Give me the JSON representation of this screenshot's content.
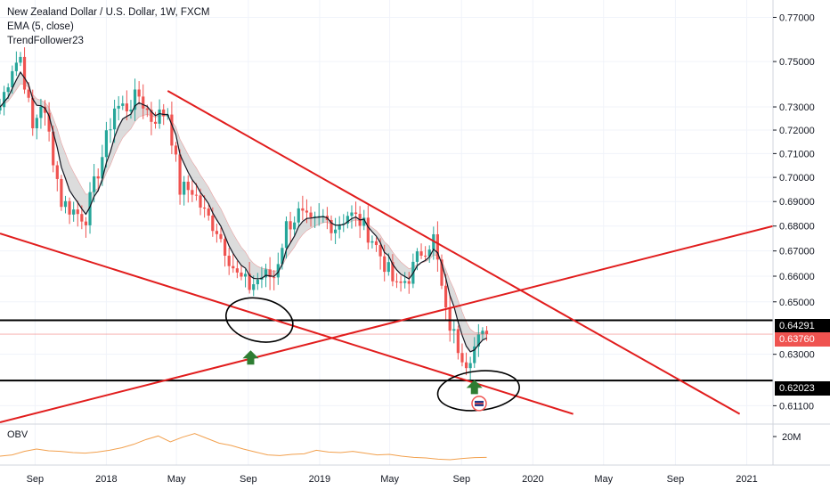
{
  "header": {
    "title": "New Zealand Dollar / U.S. Dollar, 1W, FXCM",
    "indicator": "EMA (5, close)",
    "author": "TrendFollower23"
  },
  "obv_pane": {
    "label": "OBV",
    "tick": "20M"
  },
  "price_tags": [
    {
      "value": "0.64291",
      "color": "#000000"
    },
    {
      "value": "0.63760",
      "color": "#ef5350"
    },
    {
      "value": "0.62023",
      "color": "#000000"
    }
  ],
  "colors": {
    "bull": "#26a69a",
    "bear": "#ef5350",
    "trendline": "#e11d1d",
    "support": "#000000",
    "ema": "#131722",
    "cloud": "#b2b2b2",
    "obv": "#f2a04d",
    "arrow": "#2e7d32"
  },
  "chart_data": {
    "type": "candlestick",
    "title": "New Zealand Dollar / U.S. Dollar, 1W, FXCM",
    "y_axis": {
      "scale": "log",
      "range": [
        0.605,
        0.778
      ],
      "ticks": [
        "0.77000",
        "0.75000",
        "0.73000",
        "0.72000",
        "0.71000",
        "0.70000",
        "0.69000",
        "0.68000",
        "0.67000",
        "0.66000",
        "0.65000",
        "0.63000",
        "0.61100"
      ]
    },
    "x_axis": {
      "ticks": [
        "Sep",
        "2018",
        "May",
        "Sep",
        "2019",
        "May",
        "Sep",
        "2020",
        "May",
        "Sep",
        "2021"
      ]
    },
    "close_path": [
      [
        "2017-07-03",
        0.73
      ],
      [
        "2017-07-24",
        0.748
      ],
      [
        "2017-08-07",
        0.752
      ],
      [
        "2017-08-28",
        0.72
      ],
      [
        "2017-09-11",
        0.732
      ],
      [
        "2017-09-25",
        0.718
      ],
      [
        "2017-10-16",
        0.69
      ],
      [
        "2017-11-13",
        0.685
      ],
      [
        "2017-11-27",
        0.684
      ],
      [
        "2017-12-25",
        0.709
      ],
      [
        "2018-01-15",
        0.73
      ],
      [
        "2018-02-05",
        0.73
      ],
      [
        "2018-02-26",
        0.735
      ],
      [
        "2018-03-19",
        0.725
      ],
      [
        "2018-04-16",
        0.728
      ],
      [
        "2018-05-07",
        0.695
      ],
      [
        "2018-05-28",
        0.695
      ],
      [
        "2018-06-18",
        0.685
      ],
      [
        "2018-07-09",
        0.679
      ],
      [
        "2018-08-13",
        0.66
      ],
      [
        "2018-09-03",
        0.656
      ],
      [
        "2018-09-24",
        0.66
      ],
      [
        "2018-10-15",
        0.66
      ],
      [
        "2018-11-05",
        0.68
      ],
      [
        "2018-11-26",
        0.685
      ],
      [
        "2018-12-17",
        0.68
      ],
      [
        "2019-01-07",
        0.683
      ],
      [
        "2019-01-28",
        0.68
      ],
      [
        "2019-02-18",
        0.685
      ],
      [
        "2019-03-11",
        0.682
      ],
      [
        "2019-04-01",
        0.675
      ],
      [
        "2019-04-22",
        0.665
      ],
      [
        "2019-05-13",
        0.655
      ],
      [
        "2019-06-03",
        0.66
      ],
      [
        "2019-06-24",
        0.67
      ],
      [
        "2019-07-15",
        0.675
      ],
      [
        "2019-08-05",
        0.645
      ],
      [
        "2019-08-26",
        0.633
      ],
      [
        "2019-09-09",
        0.628
      ],
      [
        "2019-09-30",
        0.635
      ],
      [
        "2019-10-14",
        0.6376
      ]
    ],
    "horizontal_levels": [
      0.64291,
      0.62023
    ],
    "last_price": 0.6376,
    "trendlines": [
      {
        "from": [
          "2018-04-16",
          0.737
        ],
        "to": [
          "2020-12-20",
          0.608
        ]
      },
      {
        "from": [
          "2017-07-03",
          0.605
        ],
        "to": [
          "2021-02-15",
          0.68
        ]
      },
      {
        "from": [
          "2017-07-03",
          0.677
        ],
        "to": [
          "2020-03-10",
          0.608
        ]
      }
    ],
    "annotations": [
      "circle 2018-09",
      "circle 2019-09",
      "up-arrow 2018-09",
      "up-arrow 2019-09"
    ],
    "obv": {
      "label": "OBV",
      "values": [
        0.2,
        0.3,
        0.6,
        0.8,
        0.65,
        0.6,
        0.5,
        0.45,
        0.55,
        0.7,
        0.9,
        1.2,
        1.6,
        1.9,
        1.4,
        1.8,
        2.1,
        1.7,
        1.3,
        1.1,
        0.8,
        0.55,
        0.3,
        0.25,
        0.35,
        0.4,
        0.7,
        0.55,
        0.5,
        0.6,
        0.45,
        0.3,
        0.35,
        0.2,
        0.1,
        0.05,
        -0.05,
        -0.1,
        0.0,
        0.08,
        0.1
      ]
    }
  }
}
